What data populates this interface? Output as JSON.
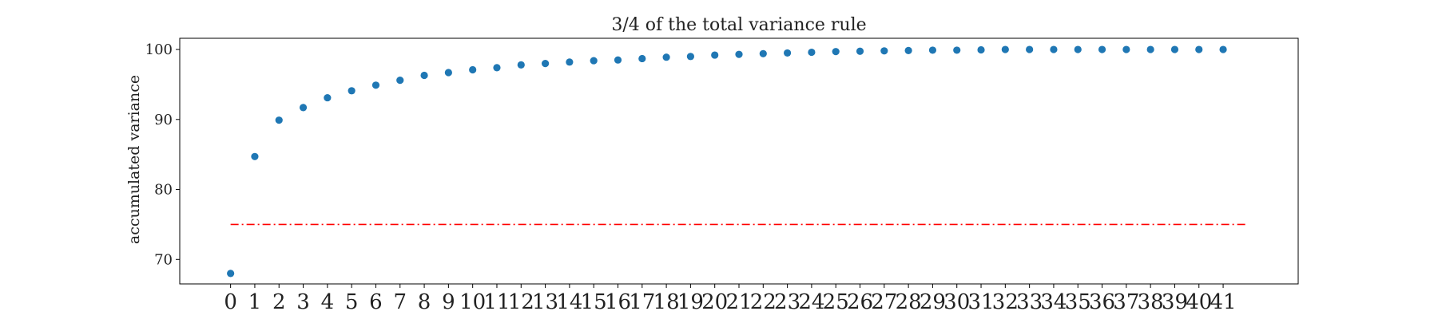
{
  "chart_data": {
    "type": "scatter",
    "title": "3/4 of the total variance rule",
    "xlabel": "",
    "ylabel": "accumulated variance",
    "x": [
      0,
      1,
      2,
      3,
      4,
      5,
      6,
      7,
      8,
      9,
      10,
      11,
      12,
      13,
      14,
      15,
      16,
      17,
      18,
      19,
      20,
      21,
      22,
      23,
      24,
      25,
      26,
      27,
      28,
      29,
      30,
      31,
      32,
      33,
      34,
      35,
      36,
      37,
      38,
      39,
      40,
      41
    ],
    "series": [
      {
        "values": [
          68.0,
          84.7,
          89.9,
          91.7,
          93.1,
          94.1,
          94.9,
          95.6,
          96.3,
          96.7,
          97.1,
          97.4,
          97.8,
          98.0,
          98.2,
          98.4,
          98.5,
          98.7,
          98.9,
          99.0,
          99.2,
          99.3,
          99.4,
          99.5,
          99.6,
          99.7,
          99.75,
          99.8,
          99.85,
          99.9,
          99.9,
          99.95,
          100,
          100,
          100,
          100,
          100,
          100,
          100,
          100,
          100,
          100
        ],
        "color": "#1f77b4"
      }
    ],
    "reference_line": {
      "y": 75,
      "x_start": 0,
      "x_end": 42,
      "color": "#ff0000",
      "style": "dash-dot"
    },
    "xlim": [
      -2.1,
      44.1
    ],
    "ylim": [
      66.5,
      101.6
    ],
    "yticks": [
      70,
      80,
      90,
      100
    ],
    "xticks": [
      0,
      1,
      2,
      3,
      4,
      5,
      6,
      7,
      8,
      9,
      10,
      11,
      12,
      13,
      14,
      15,
      16,
      17,
      18,
      19,
      20,
      21,
      22,
      23,
      24,
      25,
      26,
      27,
      28,
      29,
      30,
      31,
      32,
      33,
      34,
      35,
      36,
      37,
      38,
      39,
      40,
      41
    ],
    "grid": false,
    "legend": "none"
  }
}
